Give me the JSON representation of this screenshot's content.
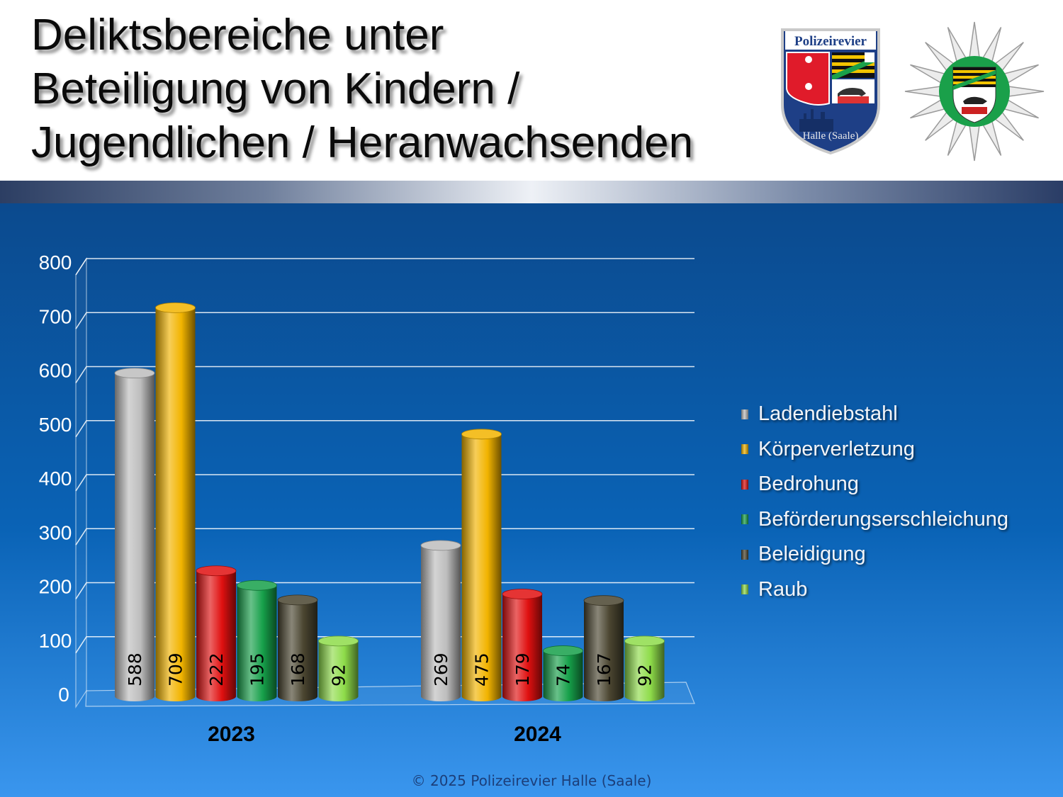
{
  "header": {
    "title_lines": [
      "Deliktsbereiche unter",
      "Beteiligung von Kindern /",
      "Jugendlichen / Heranwachsenden"
    ]
  },
  "logos": {
    "shield_text": "Polizeirevier",
    "shield_city": "Halle (Saale)"
  },
  "chart_data": {
    "type": "bar",
    "categories": [
      "2023",
      "2024"
    ],
    "series": [
      {
        "name": "Ladendiebstahl",
        "values": [
          588,
          269
        ],
        "color": "#bdbdbd"
      },
      {
        "name": "Körperverletzung",
        "values": [
          709,
          475
        ],
        "color": "#f2b400"
      },
      {
        "name": "Bedrohung",
        "values": [
          222,
          179
        ],
        "color": "#e01010"
      },
      {
        "name": "Beförderungserschleichung",
        "values": [
          195,
          74
        ],
        "color": "#16a04a"
      },
      {
        "name": "Beleidigung",
        "values": [
          168,
          167
        ],
        "color": "#4a4530"
      },
      {
        "name": "Raub",
        "values": [
          92,
          92
        ],
        "color": "#8edc4a"
      }
    ],
    "yticks": [
      "0",
      "100",
      "200",
      "300",
      "400",
      "500",
      "600",
      "700",
      "800"
    ],
    "ylim": [
      0,
      800
    ],
    "grid": true,
    "legend": "right",
    "style": "3d-cylinder"
  },
  "footer": {
    "copyright": "© 2025 Polizeirevier Halle (Saale)"
  }
}
